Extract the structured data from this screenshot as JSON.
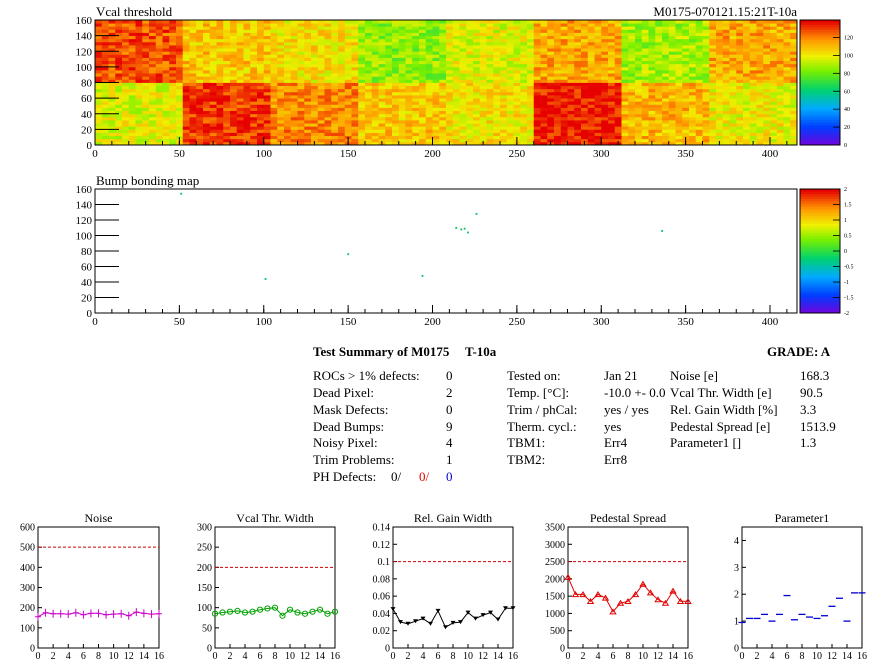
{
  "colors": {
    "red": "#e00000",
    "blue": "#0000d0",
    "magenta": "#cc00cc",
    "green": "#00a000",
    "black": "#000000",
    "dash": "#cc0000"
  },
  "chart_data": [
    {
      "type": "heatmap",
      "title": "Vcal threshold",
      "right_title": "M0175-070121.15:21T-10a",
      "xlim": [
        0,
        416
      ],
      "ylim": [
        0,
        160
      ],
      "xticks": [
        0,
        50,
        100,
        150,
        200,
        250,
        300,
        350,
        400
      ],
      "yticks": [
        0,
        20,
        40,
        60,
        80,
        100,
        120,
        140,
        160
      ],
      "palette_ticks": [
        "0",
        "20",
        "40",
        "60",
        "80",
        "100",
        "120"
      ],
      "roc_grid": {
        "cols": 8,
        "rows": 2,
        "col_width": 52,
        "row_height": 80
      },
      "roc_levels_top": [
        0.92,
        0.78,
        0.74,
        0.62,
        0.7,
        0.82,
        0.64,
        0.82
      ],
      "roc_levels_bottom": [
        0.7,
        0.95,
        0.86,
        0.78,
        0.74,
        0.98,
        0.8,
        0.72
      ]
    },
    {
      "type": "scatter",
      "title": "Bump bonding map",
      "xlim": [
        0,
        416
      ],
      "ylim": [
        0,
        160
      ],
      "xticks": [
        0,
        50,
        100,
        150,
        200,
        250,
        300,
        350,
        400
      ],
      "yticks": [
        0,
        20,
        40,
        60,
        80,
        100,
        120,
        140,
        160
      ],
      "palette_ticks": [
        "2",
        "1.5",
        "1",
        "0.5",
        "0",
        "-0.5",
        "-1",
        "-1.5",
        "-2"
      ],
      "points": [
        {
          "x": 51,
          "y": 154
        },
        {
          "x": 101,
          "y": 44
        },
        {
          "x": 150,
          "y": 76
        },
        {
          "x": 194,
          "y": 48
        },
        {
          "x": 214,
          "y": 110
        },
        {
          "x": 217,
          "y": 108
        },
        {
          "x": 219,
          "y": 109
        },
        {
          "x": 221,
          "y": 104
        },
        {
          "x": 226,
          "y": 128
        },
        {
          "x": 336,
          "y": 106
        }
      ]
    },
    {
      "type": "line",
      "title": "Noise",
      "color": "#cc00cc",
      "marker": "cross",
      "xlim": [
        0,
        16
      ],
      "ylim": [
        0,
        600
      ],
      "yticks": [
        0,
        100,
        200,
        300,
        400,
        500,
        600
      ],
      "ytick_labels": [
        "0",
        "100",
        "200",
        "300",
        "400",
        "500",
        "600"
      ],
      "xticks": [
        0,
        2,
        4,
        6,
        8,
        10,
        12,
        14,
        16
      ],
      "limit": 500,
      "values": [
        155,
        175,
        170,
        170,
        168,
        175,
        165,
        172,
        172,
        165,
        168,
        170,
        160,
        178,
        172,
        168,
        170
      ]
    },
    {
      "type": "line",
      "title": "Vcal Thr. Width",
      "color": "#00a000",
      "marker": "circle",
      "xlim": [
        0,
        16
      ],
      "ylim": [
        0,
        300
      ],
      "yticks": [
        0,
        50,
        100,
        150,
        200,
        250,
        300
      ],
      "ytick_labels": [
        "0",
        "50",
        "100",
        "150",
        "200",
        "250",
        "300"
      ],
      "xticks": [
        0,
        2,
        4,
        6,
        8,
        10,
        12,
        14,
        16
      ],
      "limit": 200,
      "values": [
        85,
        88,
        90,
        92,
        88,
        90,
        95,
        98,
        100,
        80,
        95,
        88,
        85,
        90,
        95,
        85,
        90
      ]
    },
    {
      "type": "line",
      "title": "Rel. Gain Width",
      "color": "#000000",
      "marker": "triangle-down",
      "xlim": [
        0,
        16
      ],
      "ylim": [
        0,
        0.14
      ],
      "yticks": [
        0,
        0.02,
        0.04,
        0.06,
        0.08,
        0.1,
        0.12,
        0.14
      ],
      "ytick_labels": [
        "0",
        "0.02",
        "0.04",
        "0.06",
        "0.08",
        "0.1",
        "0.12",
        "0.14"
      ],
      "xticks": [
        0,
        2,
        4,
        6,
        8,
        10,
        12,
        14,
        16
      ],
      "limit": 0.1,
      "values": [
        0.045,
        0.03,
        0.028,
        0.031,
        0.034,
        0.028,
        0.043,
        0.024,
        0.029,
        0.03,
        0.041,
        0.034,
        0.038,
        0.041,
        0.033,
        0.046,
        0.046
      ]
    },
    {
      "type": "line",
      "title": "Pedestal Spread",
      "color": "#e00000",
      "marker": "triangle-up",
      "xlim": [
        0,
        16
      ],
      "ylim": [
        0,
        3500
      ],
      "yticks": [
        0,
        500,
        1000,
        1500,
        2000,
        2500,
        3000,
        3500
      ],
      "ytick_labels": [
        "0",
        "500",
        "1000",
        "1500",
        "2000",
        "2500",
        "3000",
        "3500"
      ],
      "xticks": [
        0,
        2,
        4,
        6,
        8,
        10,
        12,
        14,
        16
      ],
      "limit": 2500,
      "values": [
        2050,
        1550,
        1550,
        1350,
        1550,
        1450,
        1050,
        1300,
        1350,
        1550,
        1850,
        1600,
        1400,
        1300,
        1650,
        1350,
        1350
      ]
    },
    {
      "type": "scatter",
      "title": "Parameter1",
      "color": "#0000d0",
      "marker": "hbar",
      "xlim": [
        0,
        16
      ],
      "ylim": [
        0,
        4.5
      ],
      "yticks": [
        0,
        1,
        2,
        3,
        4
      ],
      "ytick_labels": [
        "0",
        "1",
        "2",
        "3",
        "4"
      ],
      "xticks": [
        0,
        2,
        4,
        6,
        8,
        10,
        12,
        14,
        16
      ],
      "limit": null,
      "values": [
        0.95,
        1.1,
        1.1,
        1.25,
        1.0,
        1.25,
        1.95,
        1.05,
        1.25,
        1.15,
        1.1,
        1.2,
        1.55,
        1.85,
        1.0,
        2.05,
        2.05
      ]
    }
  ],
  "summary": {
    "title": "Test Summary of M0175",
    "subtitle": "T-10a",
    "grade_label": "GRADE:  A",
    "left_rows": [
      {
        "label": "ROCs > 1% defects:",
        "value": "0"
      },
      {
        "label": "Dead Pixel:",
        "value": "2"
      },
      {
        "label": "Mask Defects:",
        "value": "0"
      },
      {
        "label": "Dead Bumps:",
        "value": "9"
      },
      {
        "label": "Noisy Pixel:",
        "value": "4"
      },
      {
        "label": "Trim Problems:",
        "value": "1"
      }
    ],
    "ph_label": "PH Defects:",
    "ph_values": [
      "0/",
      "0/",
      "0"
    ],
    "mid_rows": [
      {
        "label": "Tested on:",
        "value": "Jan 21"
      },
      {
        "label": "Temp. [°C]:",
        "value": "-10.0 +- 0.0"
      },
      {
        "label": "Trim / phCal:",
        "value": "yes / yes"
      },
      {
        "label": "Therm. cycl.:",
        "value": "yes"
      },
      {
        "label": "TBM1:",
        "value": "Err4"
      },
      {
        "label": "TBM2:",
        "value": "Err8"
      }
    ],
    "right_rows": [
      {
        "label": "Noise [e]",
        "value": "168.3"
      },
      {
        "label": "Vcal Thr. Width [e]",
        "value": "90.5"
      },
      {
        "label": "Rel. Gain Width [%]",
        "value": "3.3"
      },
      {
        "label": "Pedestal Spread [e]",
        "value": "1513.9"
      },
      {
        "label": "Parameter1 []",
        "value": "1.3"
      }
    ]
  }
}
